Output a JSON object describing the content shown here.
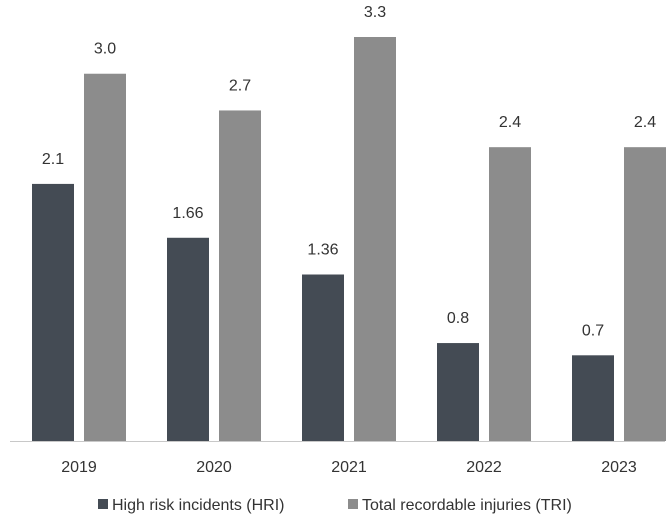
{
  "chart_data": {
    "type": "bar",
    "categories": [
      "2019",
      "2020",
      "2021",
      "2022",
      "2023"
    ],
    "series": [
      {
        "name": "High risk incidents (HRI)",
        "values": [
          2.1,
          1.66,
          1.36,
          0.8,
          0.7
        ],
        "labels": [
          "2.1",
          "1.66",
          "1.36",
          "0.8",
          "0.7"
        ],
        "color": "#444b54"
      },
      {
        "name": "Total recordable injuries (TRI)",
        "values": [
          3.0,
          2.7,
          3.3,
          2.4,
          2.4
        ],
        "labels": [
          "3.0",
          "2.7",
          "3.3",
          "2.4",
          "2.4"
        ],
        "color": "#8c8c8c"
      }
    ],
    "title": "",
    "xlabel": "",
    "ylabel": "",
    "ylim": [
      0,
      3.3
    ],
    "grid": false,
    "legend_position": "bottom",
    "axis_color": "#c8c8c8"
  }
}
